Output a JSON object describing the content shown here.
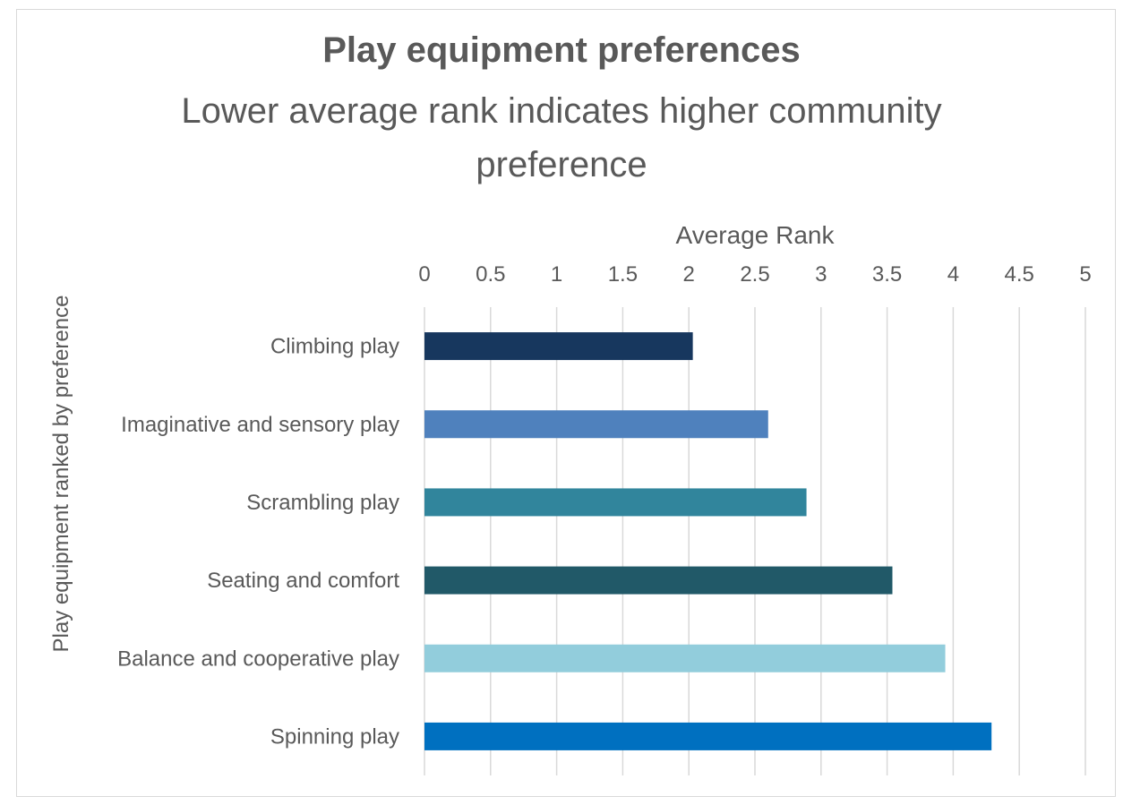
{
  "chart_data": {
    "type": "bar",
    "orientation": "horizontal",
    "title": "Play equipment preferences",
    "subtitle_lines": [
      "Lower average rank indicates higher community",
      "preference"
    ],
    "xlabel": "Average Rank",
    "ylabel": "Play equipment ranked by preference",
    "x_axis_position": "top",
    "xlim": [
      0,
      5
    ],
    "x_ticks": [
      "0",
      "0.5",
      "1",
      "1.5",
      "2",
      "2.5",
      "3",
      "3.5",
      "4",
      "4.5",
      "5"
    ],
    "grid": "vertical",
    "legend": "none",
    "categories": [
      "Climbing play",
      "Imaginative and sensory play",
      "Scrambling play",
      "Seating and comfort",
      "Balance and cooperative play",
      "Spinning play"
    ],
    "values": [
      2.03,
      2.6,
      2.89,
      3.54,
      3.94,
      4.29
    ],
    "colors": [
      "#17375e",
      "#4f81bd",
      "#31859c",
      "#215968",
      "#92cddc",
      "#0070c0"
    ]
  }
}
